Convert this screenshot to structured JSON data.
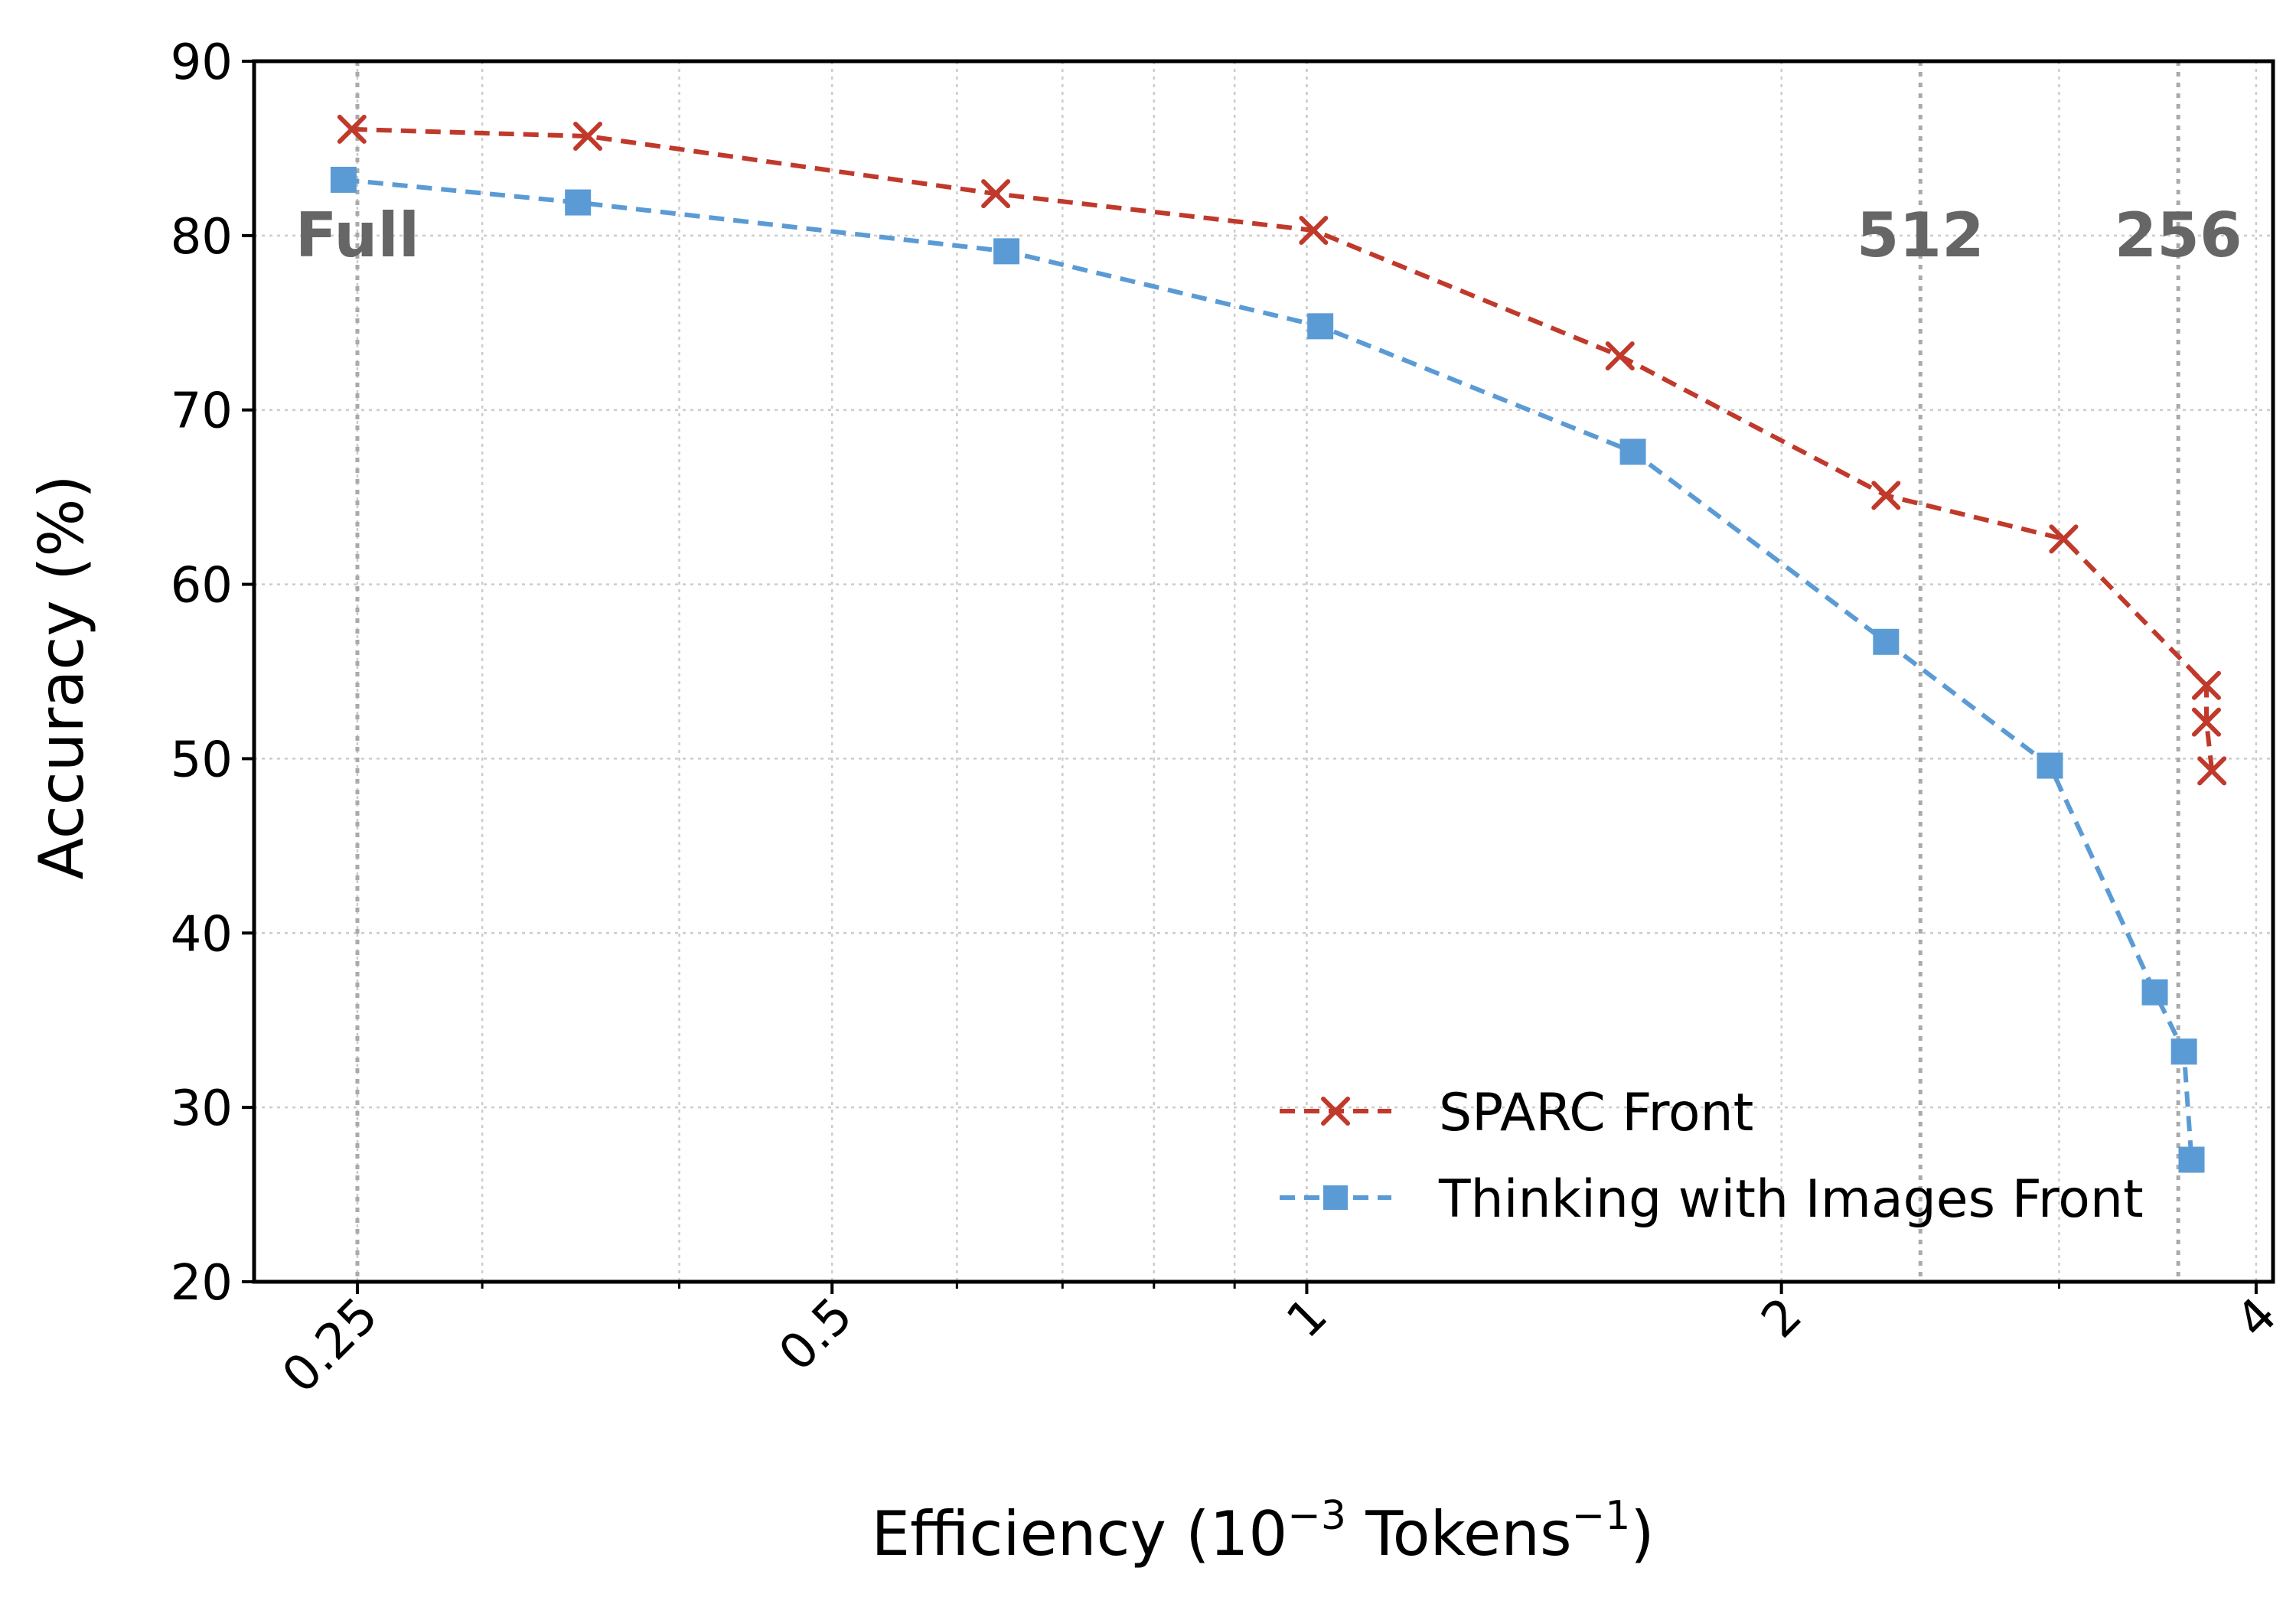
{
  "chart_data": {
    "type": "line",
    "title": "",
    "xlabel": "Efficiency (10⁻³ Tokens⁻¹)",
    "xlabel_parts": {
      "base": "Efficiency (10",
      "exp1": "−3",
      "mid": " Tokens",
      "exp2": "−1",
      "end": ")"
    },
    "ylabel": "Accuracy (%)",
    "xscale": "log2",
    "xlim": [
      0.215,
      4.1
    ],
    "ylim": [
      20,
      90
    ],
    "xticks": [
      {
        "value": 0.25,
        "label": "0.25"
      },
      {
        "value": 0.5,
        "label": "0.5"
      },
      {
        "value": 1,
        "label": "1"
      },
      {
        "value": 2,
        "label": "2"
      },
      {
        "value": 4,
        "label": "4"
      }
    ],
    "yticks": [
      {
        "value": 20,
        "label": "20"
      },
      {
        "value": 30,
        "label": "30"
      },
      {
        "value": 40,
        "label": "40"
      },
      {
        "value": 50,
        "label": "50"
      },
      {
        "value": 60,
        "label": "60"
      },
      {
        "value": 70,
        "label": "70"
      },
      {
        "value": 80,
        "label": "80"
      },
      {
        "value": 90,
        "label": "90"
      }
    ],
    "grid": true,
    "budget_lines": [
      {
        "x": 0.25,
        "label": "Full"
      },
      {
        "x": 2.45,
        "label": "512"
      },
      {
        "x": 3.57,
        "label": "256"
      }
    ],
    "legend_position": "bottom-right",
    "series": [
      {
        "name": "SPARC Front",
        "color": "#c0392b",
        "marker": "x",
        "x": [
          0.248,
          0.35,
          0.635,
          1.01,
          1.58,
          2.33,
          3.02,
          3.72,
          3.72,
          3.75
        ],
        "y": [
          86.1,
          85.7,
          82.4,
          80.3,
          73.1,
          65.1,
          62.6,
          54.2,
          52.1,
          49.3
        ]
      },
      {
        "name": "Thinking with Images Front",
        "color": "#5b9bd5",
        "marker": "s",
        "x": [
          0.245,
          0.345,
          0.645,
          1.02,
          1.61,
          2.33,
          2.96,
          3.45,
          3.6,
          3.64
        ],
        "y": [
          83.2,
          81.9,
          79.1,
          74.8,
          67.6,
          56.7,
          49.6,
          36.6,
          33.2,
          27.0
        ]
      }
    ]
  }
}
